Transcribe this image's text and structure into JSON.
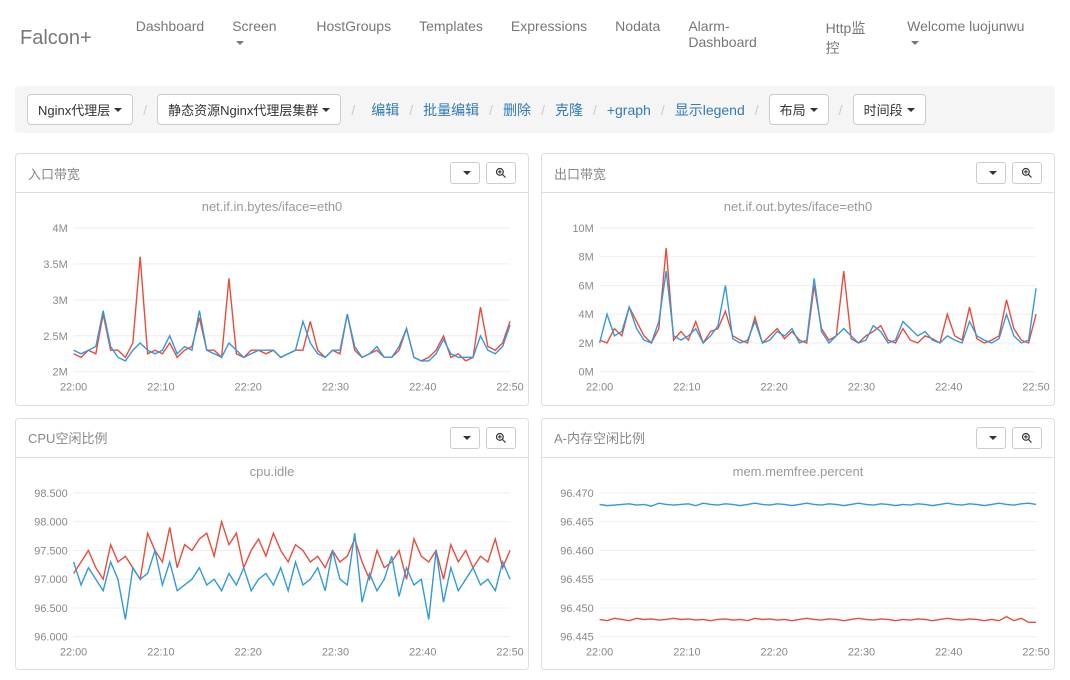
{
  "brand": "Falcon+",
  "nav": [
    {
      "label": "Dashboard",
      "dropdown": false
    },
    {
      "label": "Screen",
      "dropdown": true
    },
    {
      "label": "HostGroups",
      "dropdown": false
    },
    {
      "label": "Templates",
      "dropdown": false
    },
    {
      "label": "Expressions",
      "dropdown": false
    },
    {
      "label": "Nodata",
      "dropdown": false
    },
    {
      "label": "Alarm-Dashboard",
      "dropdown": false
    },
    {
      "label": "Http监控",
      "dropdown": false
    },
    {
      "label": "Welcome luojunwu",
      "dropdown": true
    }
  ],
  "toolbar": {
    "select1": "Nginx代理层",
    "select2": "静态资源Nginx代理层集群",
    "links": [
      "编辑",
      "批量编辑",
      "删除",
      "克隆",
      "+graph",
      "显示legend"
    ],
    "layout_btn": "布局",
    "time_btn": "时间段"
  },
  "colors": {
    "series_red": "#e74c3c",
    "series_blue": "#3498db",
    "grid": "#eeeeee",
    "axis_text": "#888888"
  },
  "charts": [
    {
      "panel_title": "入口带宽",
      "chart_title": "net.if.in.bytes/iface=eth0",
      "y_labels": [
        "2M",
        "2.5M",
        "3M",
        "3.5M",
        "4M"
      ],
      "y_values": [
        2000000,
        2500000,
        3000000,
        3500000,
        4000000
      ],
      "x_labels": [
        "22:00",
        "22:10",
        "22:20",
        "22:30",
        "22:40",
        "22:50"
      ],
      "x_count": 60,
      "series": [
        {
          "color_key": "series_red",
          "data": [
            2.25,
            2.2,
            2.3,
            2.25,
            2.8,
            2.3,
            2.3,
            2.2,
            2.4,
            3.6,
            2.25,
            2.3,
            2.25,
            2.4,
            2.2,
            2.3,
            2.35,
            2.75,
            2.3,
            2.3,
            2.2,
            3.3,
            2.25,
            2.2,
            2.3,
            2.3,
            2.25,
            2.3,
            2.2,
            2.25,
            2.3,
            2.3,
            2.7,
            2.3,
            2.2,
            2.3,
            2.25,
            2.8,
            2.3,
            2.2,
            2.25,
            2.3,
            2.2,
            2.2,
            2.3,
            2.6,
            2.2,
            2.15,
            2.2,
            2.3,
            2.5,
            2.2,
            2.25,
            2.15,
            2.2,
            2.9,
            2.35,
            2.3,
            2.4,
            2.7
          ],
          "scale": 1000000
        },
        {
          "color_key": "series_blue",
          "data": [
            2.3,
            2.25,
            2.3,
            2.35,
            2.85,
            2.35,
            2.2,
            2.15,
            2.3,
            2.4,
            2.3,
            2.25,
            2.3,
            2.5,
            2.25,
            2.35,
            2.3,
            2.85,
            2.3,
            2.25,
            2.2,
            2.4,
            2.3,
            2.2,
            2.25,
            2.3,
            2.3,
            2.3,
            2.2,
            2.25,
            2.3,
            2.7,
            2.4,
            2.25,
            2.2,
            2.3,
            2.3,
            2.8,
            2.35,
            2.2,
            2.25,
            2.35,
            2.2,
            2.2,
            2.35,
            2.6,
            2.2,
            2.15,
            2.15,
            2.25,
            2.45,
            2.25,
            2.2,
            2.2,
            2.2,
            2.5,
            2.3,
            2.25,
            2.35,
            2.65
          ],
          "scale": 1000000
        }
      ]
    },
    {
      "panel_title": "出口带宽",
      "chart_title": "net.if.out.bytes/iface=eth0",
      "y_labels": [
        "0M",
        "2M",
        "4M",
        "6M",
        "8M",
        "10M"
      ],
      "y_values": [
        0,
        2000000,
        4000000,
        6000000,
        8000000,
        10000000
      ],
      "x_labels": [
        "22:00",
        "22:10",
        "22:20",
        "22:30",
        "22:40",
        "22:50"
      ],
      "x_count": 60,
      "series": [
        {
          "color_key": "series_red",
          "data": [
            2.2,
            2.0,
            3.0,
            2.5,
            4.5,
            3.5,
            2.5,
            2.0,
            3.0,
            8.6,
            2.2,
            2.8,
            2.2,
            3.5,
            2.0,
            2.8,
            3.0,
            4.2,
            2.5,
            2.2,
            2.0,
            3.8,
            2.0,
            2.5,
            3.0,
            2.3,
            2.8,
            2.2,
            2.0,
            6.0,
            3.0,
            2.2,
            2.5,
            7.0,
            2.3,
            2.0,
            2.5,
            2.8,
            3.2,
            2.2,
            2.0,
            3.0,
            2.2,
            2.0,
            2.5,
            2.3,
            2.0,
            4.0,
            2.5,
            2.2,
            4.5,
            2.3,
            2.0,
            2.2,
            2.5,
            5.0,
            3.0,
            2.2,
            2.0,
            4.0
          ],
          "scale": 1000000
        },
        {
          "color_key": "series_blue",
          "data": [
            2.0,
            4.0,
            2.5,
            2.8,
            4.5,
            3.0,
            2.2,
            2.0,
            3.5,
            7.0,
            2.5,
            2.2,
            2.5,
            3.0,
            2.0,
            2.5,
            3.2,
            6.0,
            2.3,
            2.0,
            2.2,
            3.5,
            2.0,
            2.2,
            2.8,
            2.5,
            3.0,
            2.0,
            2.2,
            6.5,
            2.8,
            2.0,
            2.5,
            3.0,
            2.5,
            2.0,
            2.2,
            3.2,
            2.8,
            2.0,
            2.2,
            3.5,
            3.0,
            2.5,
            2.8,
            2.2,
            2.0,
            2.5,
            2.2,
            2.0,
            3.5,
            2.5,
            2.2,
            2.0,
            2.3,
            4.0,
            2.5,
            2.0,
            2.2,
            5.8
          ],
          "scale": 1000000
        }
      ]
    },
    {
      "panel_title": "CPU空闲比例",
      "chart_title": "cpu.idle",
      "y_labels": [
        "96.000",
        "96.500",
        "97.000",
        "97.500",
        "98.000",
        "98.500"
      ],
      "y_values": [
        96.0,
        96.5,
        97.0,
        97.5,
        98.0,
        98.5
      ],
      "x_labels": [
        "22:00",
        "22:10",
        "22:20",
        "22:30",
        "22:40",
        "22:50"
      ],
      "x_count": 60,
      "series": [
        {
          "color_key": "series_red",
          "data": [
            97.1,
            97.3,
            97.5,
            97.2,
            97.0,
            97.6,
            97.3,
            97.4,
            97.2,
            97.0,
            97.8,
            97.5,
            97.3,
            97.9,
            97.2,
            97.6,
            97.5,
            97.7,
            97.8,
            97.4,
            98.0,
            97.6,
            97.8,
            97.2,
            97.5,
            97.7,
            97.4,
            97.8,
            97.5,
            97.3,
            97.6,
            97.5,
            97.3,
            97.4,
            97.2,
            97.5,
            97.3,
            97.4,
            97.7,
            97.3,
            97.0,
            97.5,
            97.2,
            97.3,
            97.5,
            97.0,
            97.7,
            97.4,
            97.3,
            97.5,
            97.0,
            97.6,
            97.3,
            97.5,
            97.2,
            97.4,
            97.3,
            97.7,
            97.2,
            97.5
          ],
          "scale": 1
        },
        {
          "color_key": "series_blue",
          "data": [
            97.3,
            96.9,
            97.2,
            97.0,
            96.8,
            97.3,
            97.0,
            96.3,
            97.2,
            97.0,
            97.1,
            97.5,
            96.9,
            97.3,
            96.8,
            96.9,
            97.0,
            97.2,
            96.9,
            97.0,
            96.8,
            97.1,
            96.9,
            97.2,
            96.8,
            97.0,
            97.1,
            96.9,
            97.2,
            96.8,
            97.3,
            96.9,
            97.0,
            97.2,
            96.8,
            97.5,
            97.0,
            96.9,
            97.8,
            96.6,
            97.1,
            96.8,
            97.0,
            97.4,
            96.7,
            97.2,
            96.9,
            97.0,
            96.3,
            97.5,
            96.6,
            97.2,
            96.8,
            97.0,
            97.2,
            96.9,
            97.0,
            96.8,
            97.3,
            97.0
          ],
          "scale": 1
        }
      ]
    },
    {
      "panel_title": "A-内存空闲比例",
      "chart_title": "mem.memfree.percent",
      "y_labels": [
        "96.445",
        "96.450",
        "96.455",
        "96.460",
        "96.465",
        "96.470"
      ],
      "y_values": [
        96.445,
        96.45,
        96.455,
        96.46,
        96.465,
        96.47
      ],
      "x_labels": [
        "22:00",
        "22:10",
        "22:20",
        "22:30",
        "22:40",
        "22:50"
      ],
      "x_count": 60,
      "series": [
        {
          "color_key": "series_red",
          "data": [
            96.448,
            96.4478,
            96.4482,
            96.448,
            96.4478,
            96.4482,
            96.448,
            96.4481,
            96.4479,
            96.448,
            96.4482,
            96.448,
            96.4481,
            96.4479,
            96.448,
            96.4478,
            96.448,
            96.4481,
            96.4479,
            96.448,
            96.4478,
            96.4482,
            96.448,
            96.4481,
            96.4479,
            96.448,
            96.4478,
            96.448,
            96.4482,
            96.448,
            96.4479,
            96.4481,
            96.448,
            96.4478,
            96.448,
            96.4482,
            96.448,
            96.4479,
            96.4481,
            96.448,
            96.4478,
            96.448,
            96.4479,
            96.4481,
            96.448,
            96.4478,
            96.448,
            96.4482,
            96.448,
            96.4479,
            96.4481,
            96.448,
            96.4478,
            96.448,
            96.4478,
            96.4485,
            96.4478,
            96.4482,
            96.4475,
            96.4475
          ],
          "scale": 1
        },
        {
          "color_key": "series_blue",
          "data": [
            96.468,
            96.4678,
            96.4679,
            96.468,
            96.4681,
            96.4679,
            96.468,
            96.4677,
            96.4682,
            96.468,
            96.4679,
            96.468,
            96.4681,
            96.4678,
            96.4682,
            96.468,
            96.4679,
            96.4681,
            96.468,
            96.4678,
            96.468,
            96.4682,
            96.468,
            96.4679,
            96.4681,
            96.468,
            96.4678,
            96.468,
            96.4682,
            96.468,
            96.4679,
            96.4681,
            96.468,
            96.4678,
            96.468,
            96.4682,
            96.468,
            96.4679,
            96.4681,
            96.468,
            96.4678,
            96.468,
            96.4679,
            96.4681,
            96.468,
            96.4678,
            96.468,
            96.4682,
            96.468,
            96.4679,
            96.4681,
            96.468,
            96.4678,
            96.468,
            96.4682,
            96.468,
            96.4679,
            96.4681,
            96.4682,
            96.468
          ],
          "scale": 1
        }
      ]
    }
  ]
}
